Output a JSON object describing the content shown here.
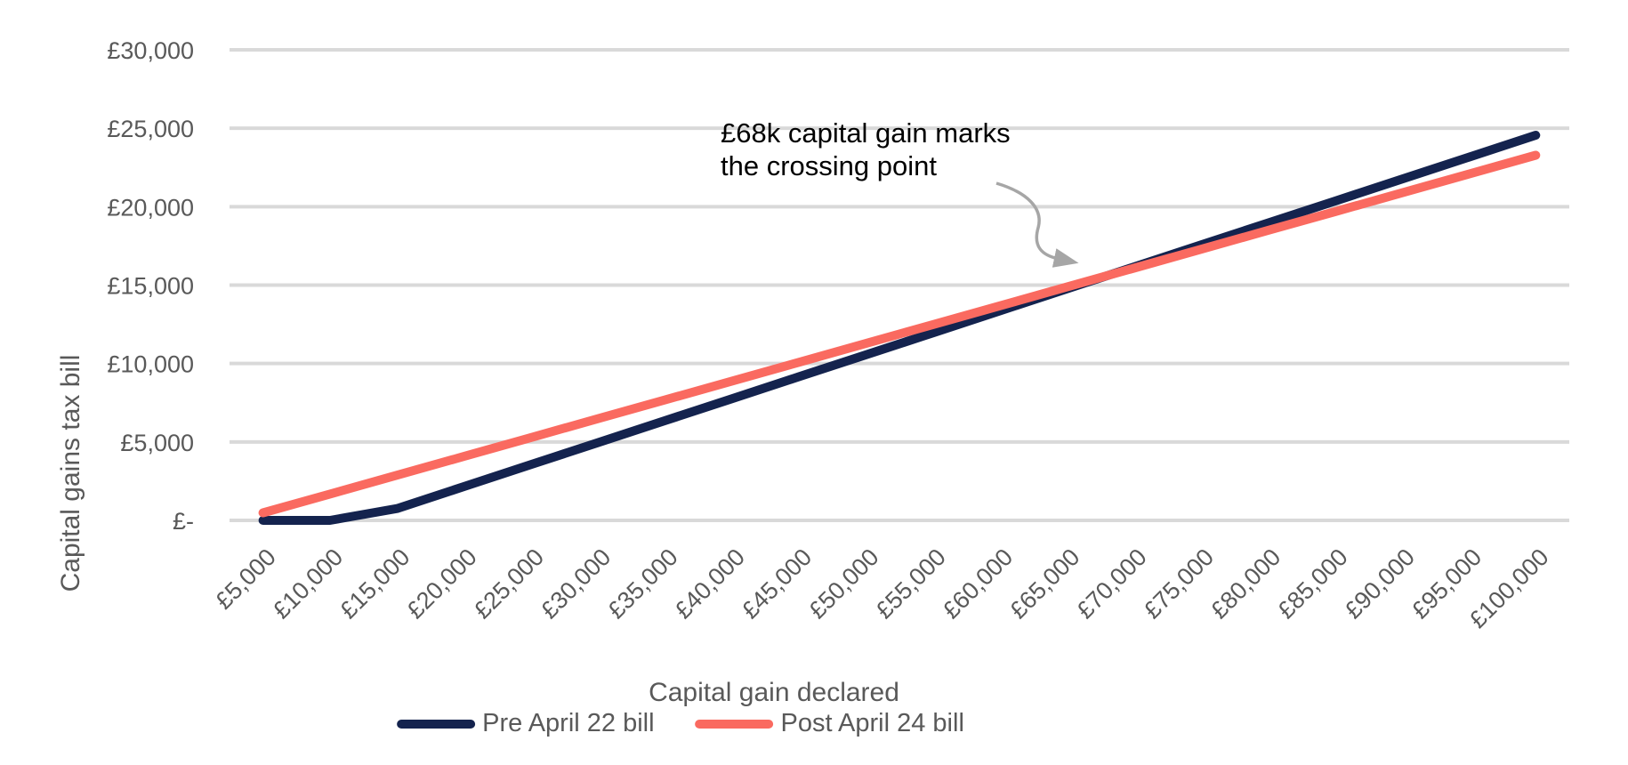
{
  "colors": {
    "background": "#FFFFFF",
    "gridline": "#D9D9D9",
    "axis_text": "#595959",
    "annotation_text": "#000000",
    "arrow": "#A6A6A6",
    "pre_series": "#14234E",
    "post_series": "#FA6A60"
  },
  "chart_data": {
    "type": "line",
    "title": "",
    "xlabel": "Capital gain declared",
    "ylabel": "Capital gains tax bill",
    "categories": [
      "£5,000",
      "£10,000",
      "£15,000",
      "£20,000",
      "£25,000",
      "£30,000",
      "£35,000",
      "£40,000",
      "£45,000",
      "£50,000",
      "£55,000",
      "£60,000",
      "£65,000",
      "£70,000",
      "£75,000",
      "£80,000",
      "£85,000",
      "£90,000",
      "£95,000",
      "£100,000"
    ],
    "x": [
      5000,
      10000,
      15000,
      20000,
      25000,
      30000,
      35000,
      40000,
      45000,
      50000,
      55000,
      60000,
      65000,
      70000,
      75000,
      80000,
      85000,
      90000,
      95000,
      100000
    ],
    "series": [
      {
        "name": "Pre April 22 bill",
        "color": "#14234E",
        "values": [
          0,
          0,
          756,
          2156,
          3556,
          4956,
          6356,
          7756,
          9156,
          10556,
          11956,
          13356,
          14756,
          16156,
          17556,
          18956,
          20356,
          21756,
          23156,
          24556
        ]
      },
      {
        "name": "Post April 24 bill",
        "color": "#FA6A60",
        "values": [
          480,
          1680,
          2880,
          4080,
          5280,
          6480,
          7680,
          8880,
          10080,
          11280,
          12480,
          13680,
          14880,
          16080,
          17280,
          18480,
          19680,
          20880,
          22080,
          23280
        ]
      }
    ],
    "y_ticks": [
      {
        "label": "£-",
        "value": 0
      },
      {
        "label": "£5,000",
        "value": 5000
      },
      {
        "label": "£10,000",
        "value": 10000
      },
      {
        "label": "£15,000",
        "value": 15000
      },
      {
        "label": "£20,000",
        "value": 20000
      },
      {
        "label": "£25,000",
        "value": 25000
      },
      {
        "label": "£30,000",
        "value": 30000
      }
    ],
    "ylim": [
      0,
      30000
    ],
    "grid": "horizontal",
    "legend_position": "bottom",
    "annotation": {
      "line1": "£68k capital gain marks",
      "line2": "the crossing point",
      "points_to": "crossing point of the two lines near £68,000"
    }
  }
}
